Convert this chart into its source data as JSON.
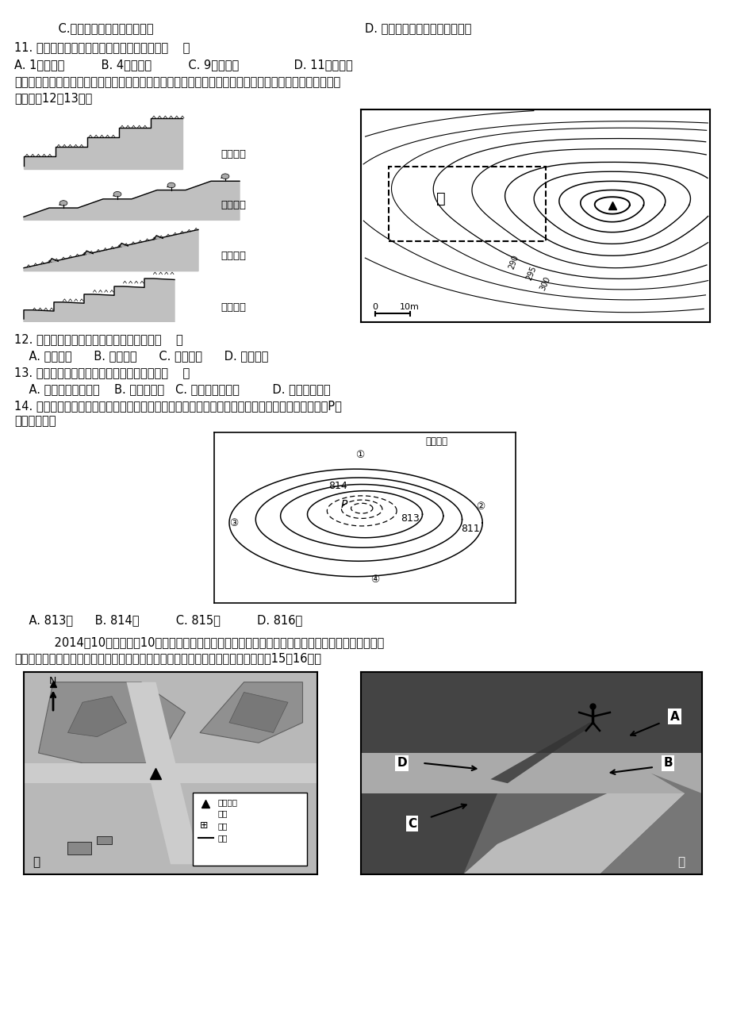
{
  "bg_color": "#ffffff",
  "line1a": "    C.与旱灾属于同一种灾害类型",
  "line1b": "D. 对海陆交通运输造成严重破坏",
  "line2": "11. 右图中出现降雪量最大月份和地点可能是（    ）",
  "line3": "A. 1月，甲地          B. 4月，乙地          C. 9月，丙地               D. 11月，丁地",
  "line4": "梯田是因地制宜发展农业生产的典范。左图是四种不同类型梯田的剖面示意图，右图是某地等高线地形图。",
  "line5": "读图回答12～13题。",
  "line6": "12. 右图中甲区地形适合修筑的梯田类型是（    ）",
  "line7": "    A. 水平梯田      B. 坡式梯田      C. 隔坡梯田      D. 反坡梯田",
  "line8": "13. 在黄土高原缓坡上修筑反坡梯田的优点是（    ）",
  "line9": "    A. 保水保土效果更好    B. 修筑难度小   C. 利于机械化耕作         D. 便于灌溉施肥",
  "line10": "14. 下图为我国某处风蚀蘑菇等高线图（实线为图上可见部分，虚线表示被上部遮盖的部分）。图中P等",
  "line11": "值线的数值为",
  "line12": "    A. 813米      B. 814米          C. 815米          D. 816米",
  "line13": "    2014年10月下旬上午10时（北京时间），张亮在华北地区某市一公园内游玩，下图中的甲图为公园",
  "line14": "内十字路口附近的导游图，乙图为张亮拍摄于此路口的照片（注意影子）。据此回答15～16题。",
  "terrace_labels": [
    "水平梯田",
    "隔坡梯田",
    "坡式梯田",
    "反坡梯田"
  ],
  "scale_text_0": "0",
  "scale_text_10": "10m"
}
